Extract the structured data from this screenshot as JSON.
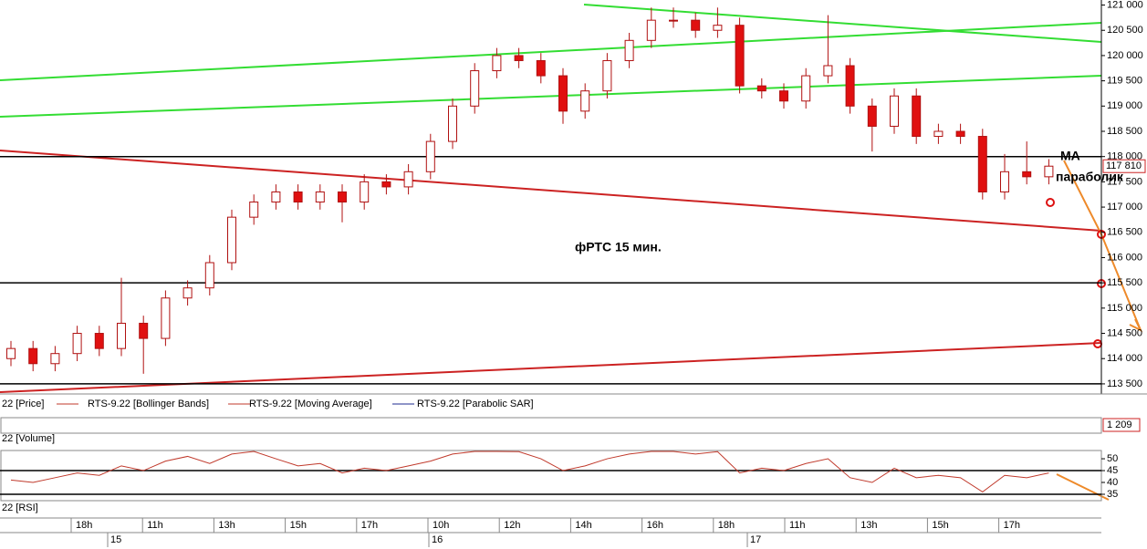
{
  "chart_data": {
    "type": "candlestick",
    "price_panel_label": "22 [Price]",
    "legend": [
      {
        "name": "RTS-9.22 [Bollinger Bands]",
        "color": "#c0392b"
      },
      {
        "name": "RTS-9.22 [Moving Average]",
        "color": "#c0392b"
      },
      {
        "name": "RTS-9.22 [Parabolic SAR]",
        "color": "#1f2b8f"
      }
    ],
    "annotations": {
      "title": "фРТС   15 мин.",
      "ma": "МА",
      "sar": "параболик"
    },
    "open": [
      114000,
      114200,
      113900,
      114100,
      114500,
      114200,
      114700,
      114400,
      115200,
      115400,
      115900,
      116800,
      117100,
      117300,
      117100,
      117300,
      117100,
      117500,
      117400,
      117700,
      118300,
      119000,
      119700,
      120000,
      119900,
      119600,
      118900,
      119300,
      119900,
      120300,
      120700,
      120700,
      120500,
      120600,
      119400,
      119300,
      119100,
      119600,
      119800,
      119000,
      118600,
      119200,
      118400,
      118500,
      118400,
      117300,
      117700,
      117600
    ],
    "high": [
      114350,
      114350,
      114250,
      114650,
      114650,
      115600,
      114850,
      115350,
      115550,
      116050,
      116950,
      117250,
      117450,
      117450,
      117450,
      117450,
      117650,
      117650,
      117850,
      118450,
      119150,
      119850,
      120150,
      120150,
      120050,
      119750,
      119450,
      120050,
      120450,
      120950,
      120950,
      120850,
      120950,
      120750,
      119550,
      119450,
      119750,
      120800,
      119950,
      119150,
      119350,
      119350,
      118650,
      118650,
      118550,
      118050,
      118300,
      117950
    ],
    "low": [
      113850,
      113750,
      113750,
      113950,
      114050,
      114050,
      113700,
      114250,
      115050,
      115250,
      115750,
      116650,
      116950,
      116950,
      116950,
      116700,
      116950,
      117250,
      117250,
      117550,
      118150,
      118850,
      119550,
      119750,
      119450,
      118650,
      118750,
      119150,
      119750,
      120150,
      120550,
      120350,
      120350,
      119250,
      119150,
      118950,
      118950,
      119450,
      118850,
      118100,
      118450,
      118250,
      118250,
      118250,
      117150,
      117150,
      117450,
      117450
    ],
    "close": [
      114200,
      113900,
      114100,
      114500,
      114200,
      114700,
      114400,
      115200,
      115400,
      115900,
      116800,
      117100,
      117300,
      117100,
      117300,
      117100,
      117500,
      117400,
      117700,
      118300,
      119000,
      119700,
      120000,
      119900,
      119600,
      118900,
      119300,
      119900,
      120300,
      120700,
      120700,
      120500,
      120600,
      119400,
      119300,
      119100,
      119600,
      119800,
      119000,
      118600,
      119200,
      118400,
      118500,
      118400,
      117300,
      117700,
      117600,
      117810
    ],
    "ylim": [
      113300,
      121100
    ],
    "yticks": [
      {
        "value": 113500,
        "label": "113 500"
      },
      {
        "value": 114000,
        "label": "114 000"
      },
      {
        "value": 114500,
        "label": "114 500"
      },
      {
        "value": 115000,
        "label": "115 000"
      },
      {
        "value": 115500,
        "label": "115 500"
      },
      {
        "value": 116000,
        "label": "116 000"
      },
      {
        "value": 116500,
        "label": "116 500"
      },
      {
        "value": 117000,
        "label": "117 000"
      },
      {
        "value": 117500,
        "label": "117 500"
      },
      {
        "value": 118000,
        "label": "118 000"
      },
      {
        "value": 118500,
        "label": "118 500"
      },
      {
        "value": 119000,
        "label": "119 000"
      },
      {
        "value": 119500,
        "label": "119 500"
      },
      {
        "value": 120000,
        "label": "120 000"
      },
      {
        "value": 120500,
        "label": "120 500"
      },
      {
        "value": 121000,
        "label": "121 000"
      }
    ],
    "levels": [
      118000,
      115500,
      113500
    ],
    "last_price": {
      "value": 117810,
      "label": "117 810"
    },
    "volume": {
      "title": "22 [Volume]",
      "last": {
        "value": 1209,
        "label": "1 209"
      }
    },
    "rsi": {
      "title": "22 [RSI]",
      "values": [
        41,
        40,
        42,
        44,
        43,
        47,
        45,
        49,
        51,
        48,
        52,
        55,
        50,
        47,
        48,
        44,
        46,
        45,
        47,
        49,
        52,
        54,
        55,
        53,
        50,
        45,
        47,
        50,
        52,
        54,
        54,
        52,
        53,
        44,
        46,
        45,
        48,
        50,
        42,
        40,
        46,
        42,
        43,
        42,
        36,
        43,
        42,
        44
      ],
      "ylim": [
        32.3,
        53.1
      ],
      "yticks": [
        50,
        45,
        40,
        35
      ],
      "levels": [
        45,
        35
      ]
    },
    "time_labels": [
      "18h",
      "11h",
      "13h",
      "15h",
      "17h",
      "10h",
      "12h",
      "14h",
      "16h",
      "18h",
      "11h",
      "13h",
      "15h",
      "17h"
    ],
    "date_labels": [
      "15",
      "16",
      "17"
    ]
  }
}
